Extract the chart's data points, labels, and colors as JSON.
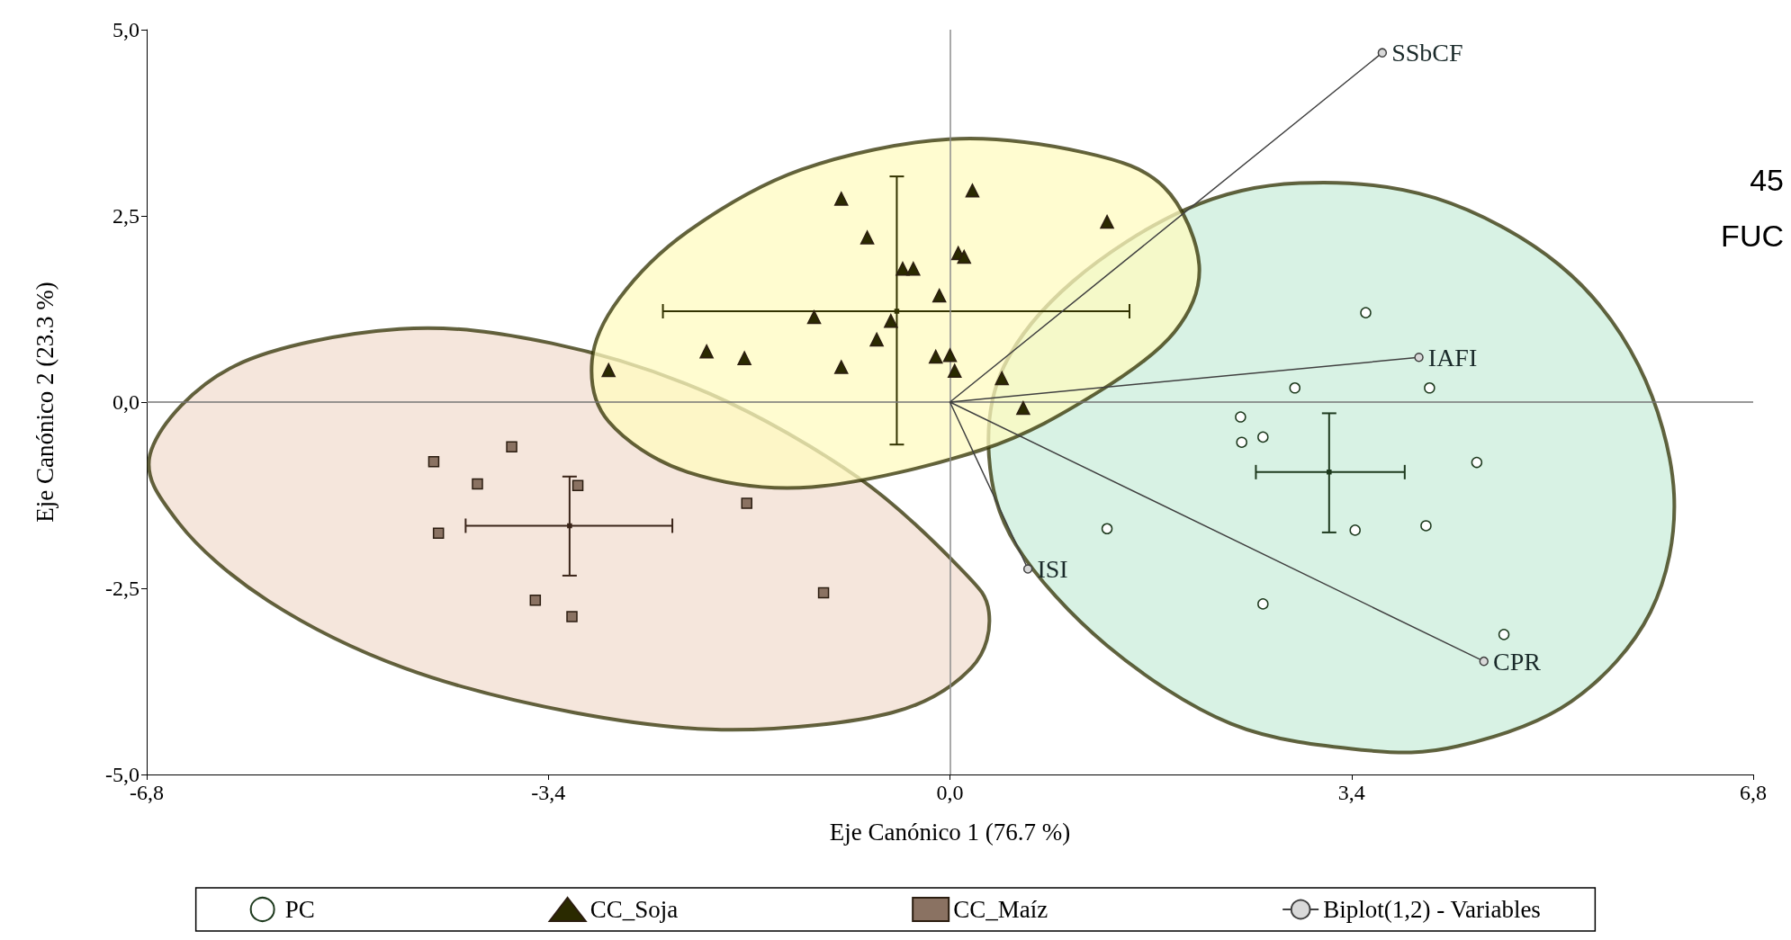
{
  "chart_data": {
    "type": "scatter",
    "xlabel": "Eje Canónico 1 (76.7 %)",
    "ylabel": "Eje Canónico 2 (23.3 %)",
    "xlim": [
      -6.8,
      6.8
    ],
    "xticks": [
      {
        "value": -6.8,
        "label": "-6,8"
      },
      {
        "value": -3.4,
        "label": "-3,4"
      },
      {
        "value": 0,
        "label": "0,0"
      },
      {
        "value": 3.4,
        "label": "3,4"
      },
      {
        "value": 6.8,
        "label": "6,8"
      }
    ],
    "ylim": [
      -5,
      5
    ],
    "yticks": [
      {
        "value": -5,
        "label": "-5,0"
      },
      {
        "value": -2.5,
        "label": "-2,5"
      },
      {
        "value": 0,
        "label": "0,0"
      },
      {
        "value": 2.5,
        "label": "2,5"
      },
      {
        "value": 5,
        "label": "5,0"
      }
    ],
    "grid": false,
    "legend": "bottom",
    "ref_lines": [
      {
        "axis": "x",
        "value": 0,
        "color": "#8c8c8c"
      },
      {
        "axis": "y",
        "value": 0,
        "color": "#767676"
      }
    ],
    "annotations": [
      "45",
      "FUC"
    ],
    "series": [
      {
        "type": "area",
        "color": "#f2ddd0",
        "x": [
          -6.76,
          -6.05,
          -4.66,
          -3.37,
          -2.03,
          -0.78,
          0.08,
          0.33,
          0.18,
          -0.49,
          -1.84,
          -3.18,
          -4.62,
          -5.77,
          -6.53
        ],
        "values": [
          -0.64,
          0.49,
          0.98,
          0.79,
          0.11,
          -1.01,
          -2.22,
          -2.82,
          -3.57,
          -4.17,
          -4.4,
          -4.17,
          -3.57,
          -2.67,
          -1.62
        ]
      },
      {
        "type": "area",
        "color": "#cbeedb",
        "x": [
          0.33,
          0.46,
          1.04,
          2.0,
          2.96,
          4.11,
          5.16,
          5.83,
          6.13,
          5.93,
          5.26,
          4.3,
          3.49,
          2.38,
          1.33,
          0.56
        ],
        "values": [
          -0.71,
          0.49,
          1.62,
          2.59,
          2.94,
          2.74,
          1.84,
          0.49,
          -1.24,
          -2.82,
          -4.02,
          -4.62,
          -4.67,
          -4.32,
          -3.27,
          -1.92
        ]
      },
      {
        "type": "area",
        "color": "#fffbc0",
        "x": [
          -3.03,
          -2.8,
          -2.22,
          -1.26,
          -0.01,
          1.14,
          1.81,
          2.11,
          1.9,
          1.23,
          0.27,
          -1.17,
          -2.22,
          -2.89
        ],
        "values": [
          0.56,
          1.39,
          2.29,
          3.12,
          3.53,
          3.35,
          2.89,
          1.84,
          0.94,
          0.11,
          -0.64,
          -1.14,
          -0.94,
          -0.26
        ]
      },
      {
        "name": "PC",
        "marker": "circle",
        "color": "#1e3a1e",
        "x": [
          3.52,
          2.92,
          4.06,
          2.46,
          2.65,
          2.47,
          4.46,
          1.33,
          3.43,
          4.03,
          2.65,
          4.69
        ],
        "values": [
          1.2,
          0.19,
          0.19,
          -0.2,
          -0.47,
          -0.54,
          -0.81,
          -1.7,
          -1.72,
          -1.66,
          -2.71,
          -3.12
        ]
      },
      {
        "name": "CC_Soja",
        "marker": "triangle",
        "color": "#2a2a00",
        "x": [
          -0.92,
          0.19,
          1.33,
          -0.7,
          -0.4,
          -0.31,
          0.07,
          0.12,
          -0.09,
          -1.15,
          -0.5,
          -0.62,
          -2.06,
          -1.74,
          -0.92,
          -0.12,
          0.0,
          0.04,
          -2.89,
          0.44,
          0.62
        ],
        "values": [
          2.73,
          2.84,
          2.42,
          2.21,
          1.79,
          1.79,
          2.0,
          1.95,
          1.43,
          1.14,
          1.09,
          0.84,
          0.68,
          0.59,
          0.47,
          0.61,
          0.63,
          0.42,
          0.43,
          0.32,
          -0.08
        ]
      },
      {
        "name": "CC_Maíz",
        "marker": "square",
        "color": "#8a7262",
        "x": [
          -4.37,
          -3.71,
          -4.0,
          -3.15,
          -4.33,
          -3.51,
          -3.2,
          -1.72,
          -1.07
        ],
        "values": [
          -0.8,
          -0.6,
          -1.1,
          -1.12,
          -1.76,
          -2.66,
          -2.88,
          -1.36,
          -2.56
        ]
      },
      {
        "marker": "square",
        "color": "#3a2418",
        "x": [
          -3.22
        ],
        "values": [
          -1.66
        ],
        "errors": [
          [
            -2.33,
            -1.0
          ]
        ],
        "xerrors": [
          [
            -4.1,
            -2.35
          ]
        ]
      },
      {
        "marker": "square",
        "color": "#333300",
        "x": [
          -0.45
        ],
        "values": [
          1.22
        ],
        "errors": [
          [
            -0.57,
            3.03
          ]
        ],
        "xerrors": [
          [
            -2.43,
            1.52
          ]
        ]
      },
      {
        "marker": "square",
        "color": "#1e3a1e",
        "x": [
          3.21
        ],
        "values": [
          -0.94
        ],
        "errors": [
          [
            -1.75,
            -0.15
          ]
        ],
        "xerrors": [
          [
            2.59,
            3.85
          ]
        ]
      },
      {
        "name": "Biplot(1,2) - Variables",
        "type": "line",
        "marker": "circle",
        "color": "#404040",
        "x": [
          0,
          3.66,
          0,
          3.97,
          0,
          0.66,
          0,
          4.52
        ],
        "values": [
          0,
          4.69,
          0,
          0.6,
          0,
          -2.24,
          0,
          -3.48
        ],
        "value_labels": [
          null,
          "SSbCF",
          null,
          "IAFI",
          null,
          "ISI",
          null,
          "CPR"
        ]
      }
    ]
  }
}
